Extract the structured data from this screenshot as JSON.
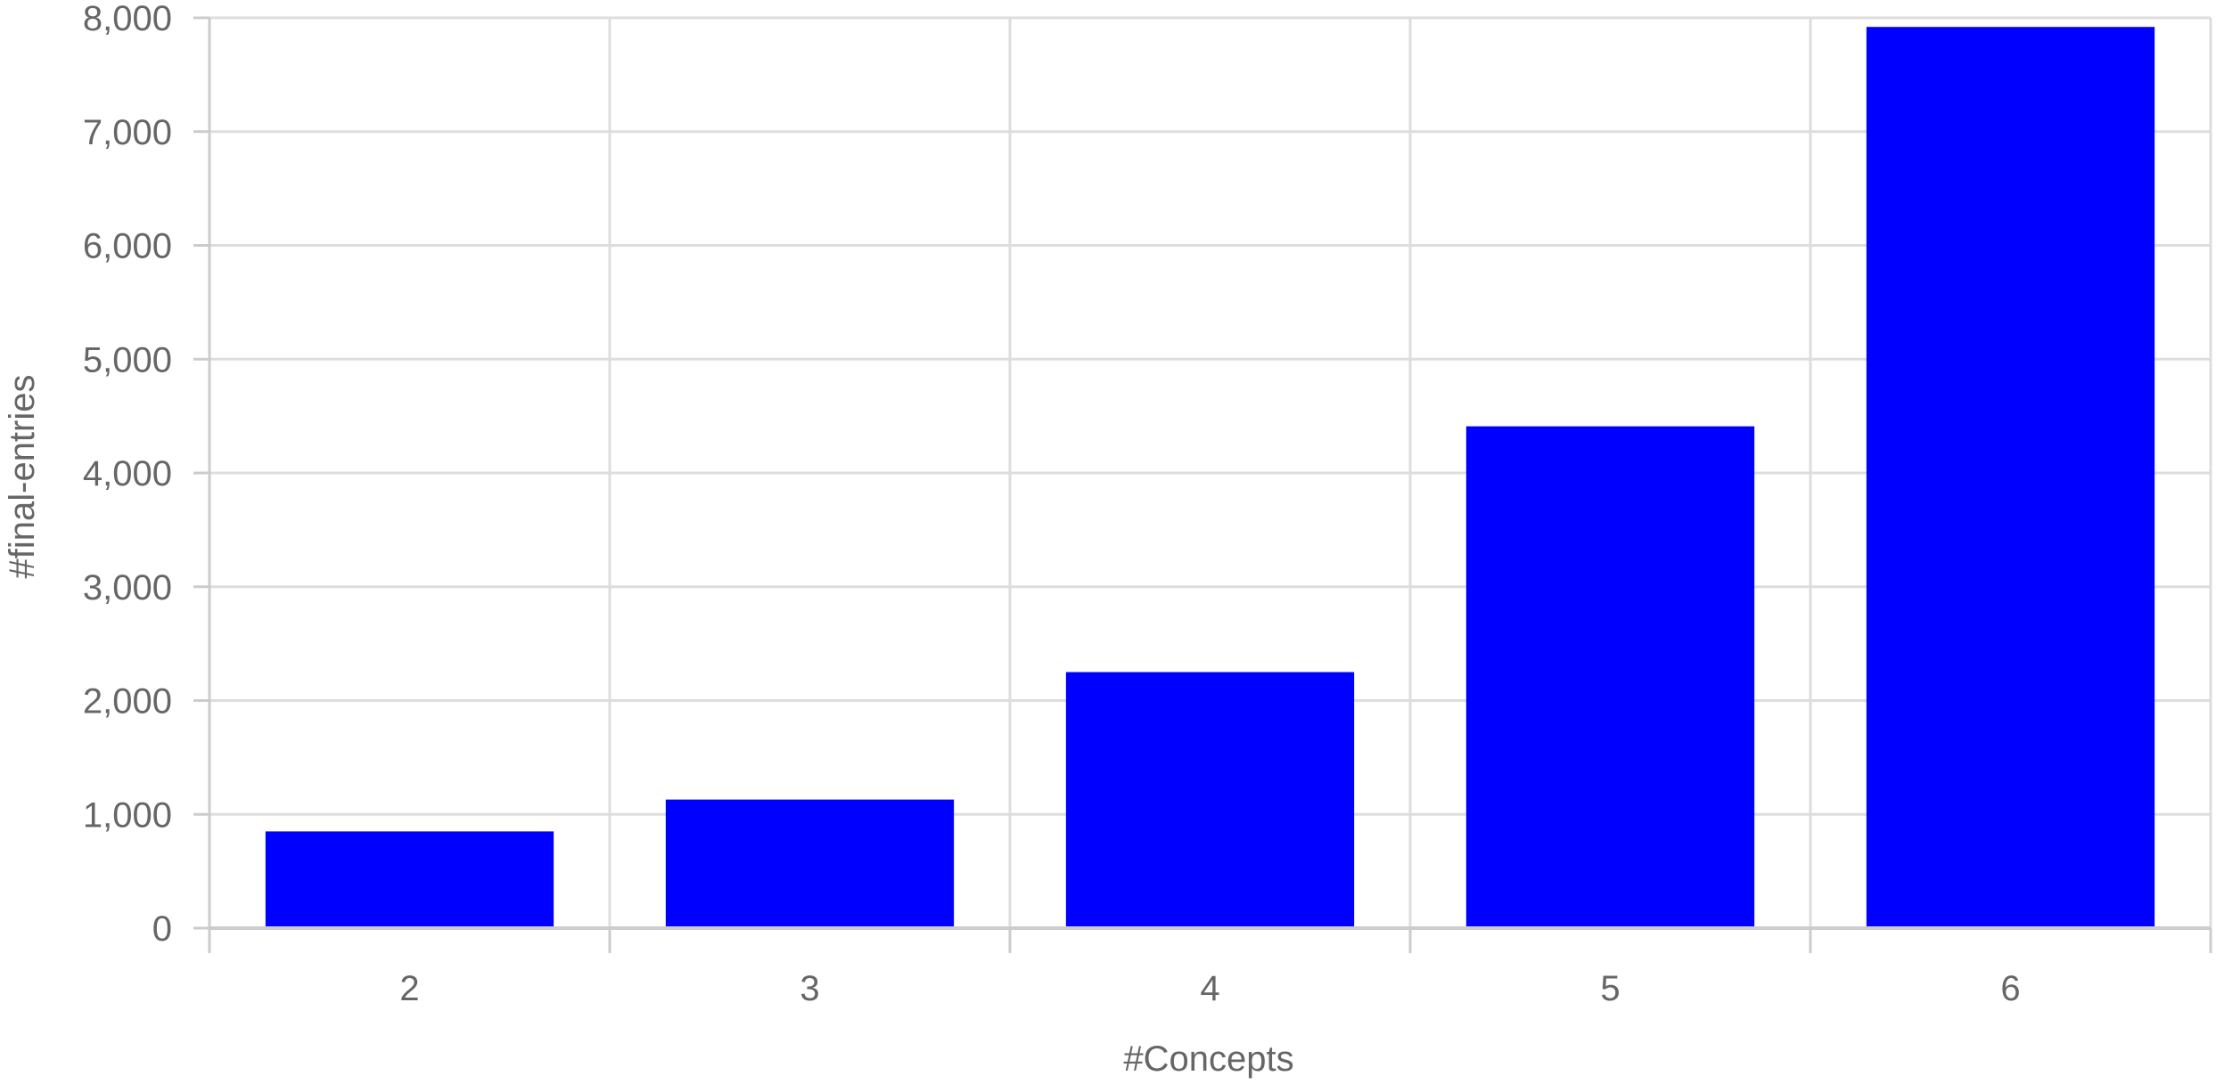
{
  "chart_data": {
    "type": "bar",
    "title": "",
    "xlabel": "#Concepts",
    "ylabel": "#final-entries",
    "categories": [
      "2",
      "3",
      "4",
      "5",
      "6"
    ],
    "values": [
      850,
      1130,
      2250,
      4410,
      7920
    ],
    "ylim": [
      0,
      8000
    ],
    "yticks": [
      0,
      1000,
      2000,
      3000,
      4000,
      5000,
      6000,
      7000,
      8000
    ],
    "ytick_labels": [
      "0",
      "1,000",
      "2,000",
      "3,000",
      "4,000",
      "5,000",
      "6,000",
      "7,000",
      "8,000"
    ],
    "grid": true,
    "legend": "none",
    "colors": {
      "bar": "#0000ff",
      "grid": "#dddddd",
      "axis": "#cccccc",
      "text": "#666666"
    }
  }
}
